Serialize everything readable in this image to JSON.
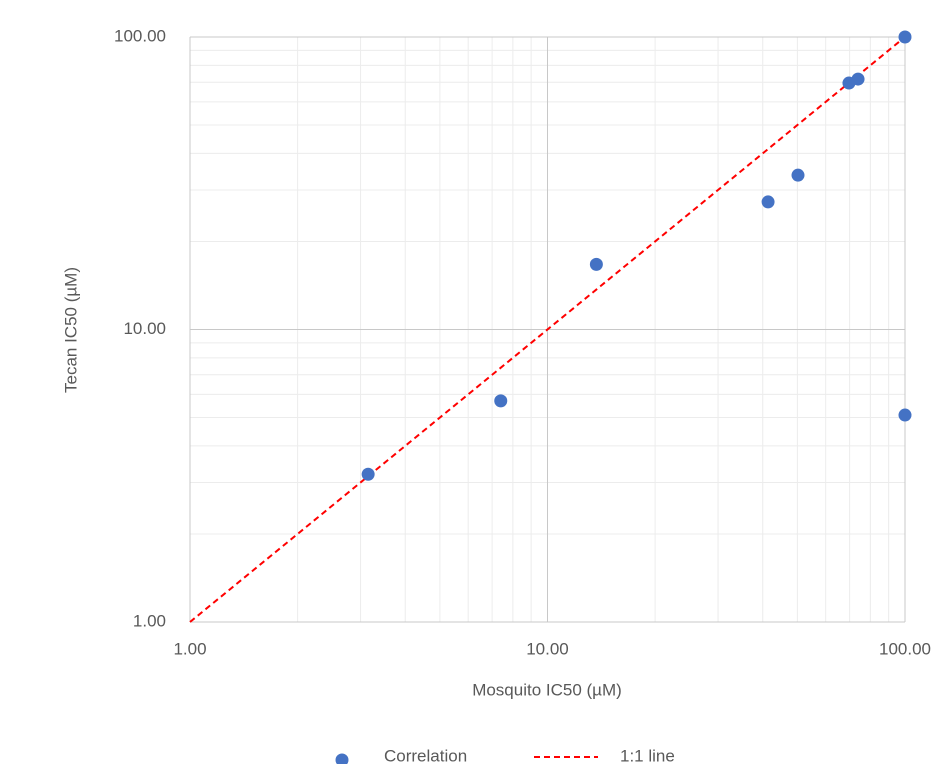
{
  "chart_data": {
    "type": "scatter",
    "x_label": "Mosquito IC50 (µM)",
    "y_label": "Tecan IC50 (µM)",
    "xscale": "log",
    "yscale": "log",
    "xlim": [
      1,
      100
    ],
    "ylim": [
      1,
      100
    ],
    "xticks": [
      {
        "value": 1,
        "label": "1.00"
      },
      {
        "value": 10,
        "label": "10.00"
      },
      {
        "value": 100,
        "label": "100.00"
      }
    ],
    "yticks": [
      {
        "value": 1,
        "label": "1.00"
      },
      {
        "value": 10,
        "label": "10.00"
      },
      {
        "value": 100,
        "label": "100.00"
      }
    ],
    "grid": true,
    "minor_grid": true,
    "legend": "bottom",
    "series": [
      {
        "name": "Correlation",
        "type": "scatter",
        "color": "#4472c4",
        "x": [
          3.15,
          7.4,
          13.7,
          41.4,
          50.2,
          69.7,
          73.9,
          100,
          100
        ],
        "values": [
          3.2,
          5.7,
          16.7,
          27.3,
          33.7,
          69.6,
          71.8,
          100,
          5.1
        ]
      },
      {
        "name": "1:1 line",
        "type": "line",
        "color": "#ff0000",
        "dashed": true,
        "x": [
          1,
          100
        ],
        "values": [
          1,
          100
        ]
      }
    ]
  }
}
